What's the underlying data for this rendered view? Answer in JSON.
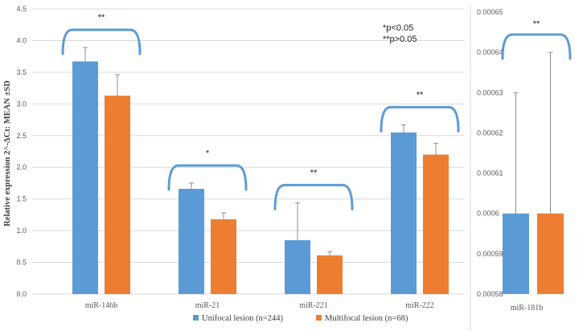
{
  "chart_data": [
    {
      "type": "bar",
      "ylabel": "Relative expression 2^-ΔCt: MEAN ±SD",
      "ylim": [
        0,
        4.5
      ],
      "yticks": [
        "0.0",
        "0.5",
        "1.0",
        "1.5",
        "2.0",
        "2.5",
        "3.0",
        "3.5",
        "4.0",
        "4.5"
      ],
      "categories": [
        "miR-146b",
        "miR-21",
        "miR-221",
        "miR-222"
      ],
      "series": [
        {
          "name": "Unifocal lesion (n=244)",
          "color": "#5B9BD5",
          "values": [
            3.67,
            1.66,
            0.85,
            2.55
          ],
          "errors": [
            0.22,
            0.09,
            0.59,
            0.12
          ]
        },
        {
          "name": "Multifocal lesion (n=68)",
          "color": "#ED7D31",
          "values": [
            3.13,
            1.18,
            0.61,
            2.2
          ],
          "errors": [
            0.33,
            0.1,
            0.06,
            0.18
          ]
        }
      ],
      "significance": [
        "**",
        "*",
        "**",
        "**"
      ],
      "grid": true
    },
    {
      "type": "bar",
      "ylim": [
        0.00058,
        0.00065
      ],
      "yticks": [
        "0.00058",
        "0.00059",
        "0.0006",
        "0.00061",
        "0.00062",
        "0.00063",
        "0.00064",
        "0.00065"
      ],
      "categories": [
        "miR-181b"
      ],
      "series": [
        {
          "name": "Unifocal lesion (n=244)",
          "color": "#5B9BD5",
          "values": [
            0.0006
          ],
          "errors": [
            3e-05
          ]
        },
        {
          "name": "Multifocal lesion (n=68)",
          "color": "#ED7D31",
          "values": [
            0.0006
          ],
          "errors": [
            4e-05
          ]
        }
      ],
      "significance": [
        "**"
      ],
      "grid": false
    }
  ],
  "annotation": {
    "line1": "*p<0.05",
    "line2": "**p>0.05"
  },
  "legend": {
    "items": [
      {
        "label": "Unifocal lesion (n=244)",
        "color": "#5B9BD5"
      },
      {
        "label": "Multifocal lesion (n=68)",
        "color": "#ED7D31"
      }
    ]
  }
}
